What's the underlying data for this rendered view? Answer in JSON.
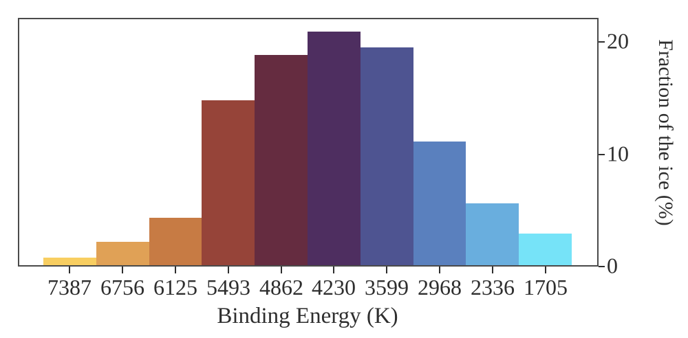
{
  "figure": {
    "background_color": "#ffffff",
    "axis_color": "#4a4a4a",
    "text_color": "#2e2e2e"
  },
  "chart_data": {
    "type": "bar",
    "title": "",
    "xlabel": "Binding Energy (K)",
    "ylabel": "Fraction of the ice (%)",
    "categories": [
      "7387",
      "6756",
      "6125",
      "5493",
      "4862",
      "4230",
      "3599",
      "2968",
      "2336",
      "1705"
    ],
    "values": [
      0.7,
      2.1,
      4.2,
      14.7,
      18.7,
      20.8,
      19.4,
      11.0,
      5.5,
      2.8
    ],
    "bar_colors": [
      "#f8ce61",
      "#e0a156",
      "#c77b44",
      "#964439",
      "#652c40",
      "#4e2e60",
      "#4e5491",
      "#5a80be",
      "#69aede",
      "#76e3f8"
    ],
    "ytick_labels": [
      "0",
      "10",
      "20"
    ],
    "ytick_values": [
      0,
      10,
      20
    ],
    "ylim": [
      0,
      22
    ],
    "grid": false,
    "legend_position": "none",
    "ytick_side": "right",
    "bar_gap": 0
  }
}
